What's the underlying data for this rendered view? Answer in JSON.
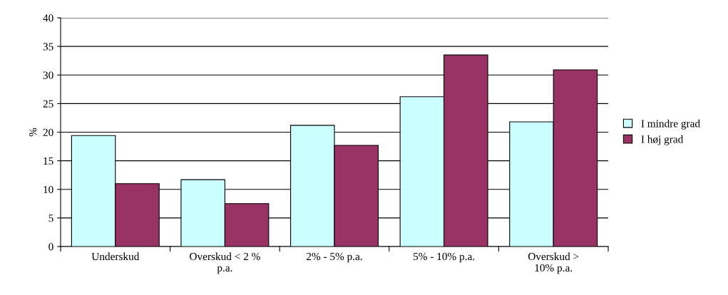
{
  "chart_data": {
    "type": "bar",
    "ylabel": "%",
    "categories": [
      "Underskud",
      "Overskud < 2 %\np.a.",
      "2% - 5% p.a.",
      "5% - 10% p.a.",
      "Overskud >\n10% p.a."
    ],
    "series": [
      {
        "name": "I mindre grad",
        "color": "#ccffff",
        "values": [
          19.4,
          11.7,
          21.2,
          26.2,
          21.8
        ]
      },
      {
        "name": "I høj grad",
        "color": "#993366",
        "values": [
          11.0,
          7.5,
          17.7,
          33.5,
          30.9
        ]
      }
    ],
    "ylim": [
      0,
      40
    ],
    "yticks": [
      0,
      5,
      10,
      15,
      20,
      25,
      30,
      35,
      40
    ],
    "grid": "y",
    "legend": "right"
  }
}
